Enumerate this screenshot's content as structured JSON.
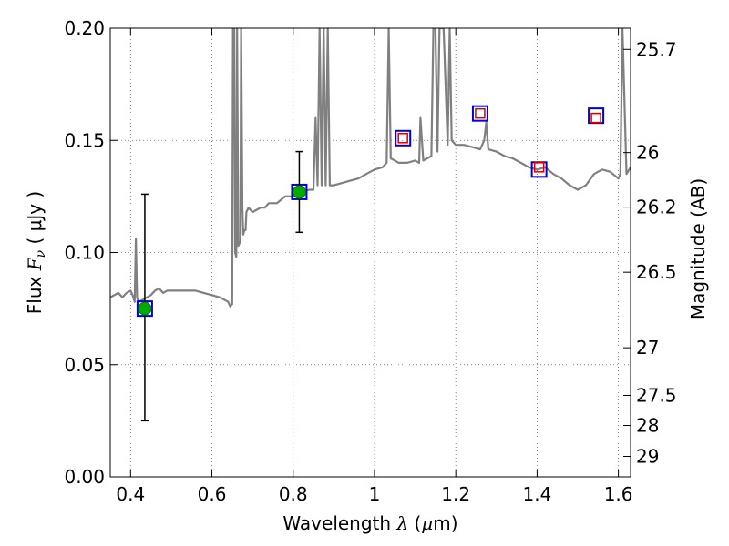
{
  "chart_data": {
    "type": "line",
    "xlabel": {
      "prefix": "Wavelength  ",
      "symbol": "λ",
      "unit_open": " (",
      "unit_mu": "μ",
      "unit_rest": "m)"
    },
    "ylabel_left": {
      "prefix": "Flux  ",
      "symbol": "F",
      "subscript": "ν",
      "unit": "  ( μJy )"
    },
    "ylabel_right": "Magnitude (AB)",
    "xlim": [
      0.35,
      1.63
    ],
    "ylim": [
      0.0,
      0.2
    ],
    "xticks": [
      0.4,
      0.6,
      0.8,
      1.0,
      1.2,
      1.4,
      1.6
    ],
    "xtick_labels": [
      "0.4",
      "0.6",
      "0.8",
      "1",
      "1.2",
      "1.4",
      "1.6"
    ],
    "yticks": [
      0.0,
      0.05,
      0.1,
      0.15,
      0.2
    ],
    "ytick_labels": [
      "0.00",
      "0.05",
      "0.10",
      "0.15",
      "0.20"
    ],
    "right_ticks": [
      {
        "label": "25.7",
        "mag": 25.7
      },
      {
        "label": "26",
        "mag": 26.0
      },
      {
        "label": "26.2",
        "mag": 26.2
      },
      {
        "label": "26.5",
        "mag": 26.5
      },
      {
        "label": "27",
        "mag": 27.0
      },
      {
        "label": "27.5",
        "mag": 27.5
      },
      {
        "label": "28",
        "mag": 28.0
      },
      {
        "label": "29",
        "mag": 29.0
      }
    ],
    "grid": true,
    "colors": {
      "spectrum": "#808080",
      "detection": "#00aa00",
      "model_box": "#0000dd",
      "upper_box": "#dd0000",
      "errorbar": "#000000"
    },
    "spectrum": {
      "name": "",
      "x": [
        0.35,
        0.36,
        0.37,
        0.38,
        0.39,
        0.4,
        0.405,
        0.41,
        0.413,
        0.416,
        0.42,
        0.43,
        0.44,
        0.45,
        0.46,
        0.47,
        0.48,
        0.49,
        0.5,
        0.52,
        0.54,
        0.56,
        0.58,
        0.6,
        0.62,
        0.64,
        0.645,
        0.65,
        0.652,
        0.655,
        0.657,
        0.66,
        0.662,
        0.665,
        0.67,
        0.672,
        0.675,
        0.677,
        0.68,
        0.683,
        0.685,
        0.69,
        0.7,
        0.72,
        0.73,
        0.74,
        0.76,
        0.78,
        0.8,
        0.82,
        0.84,
        0.85,
        0.855,
        0.86,
        0.865,
        0.87,
        0.875,
        0.88,
        0.885,
        0.89,
        0.9,
        0.92,
        0.94,
        0.96,
        0.98,
        1.0,
        1.02,
        1.03,
        1.035,
        1.04,
        1.05,
        1.06,
        1.08,
        1.1,
        1.11,
        1.113,
        1.12,
        1.14,
        1.145,
        1.15,
        1.155,
        1.16,
        1.17,
        1.18,
        1.185,
        1.19,
        1.2,
        1.22,
        1.24,
        1.26,
        1.27,
        1.275,
        1.28,
        1.3,
        1.32,
        1.34,
        1.36,
        1.38,
        1.4,
        1.42,
        1.44,
        1.46,
        1.48,
        1.5,
        1.52,
        1.54,
        1.56,
        1.58,
        1.6,
        1.605,
        1.61,
        1.62,
        1.63
      ],
      "y": [
        0.08,
        0.081,
        0.082,
        0.08,
        0.082,
        0.083,
        0.081,
        0.078,
        0.106,
        0.08,
        0.078,
        0.079,
        0.08,
        0.081,
        0.083,
        0.084,
        0.082,
        0.083,
        0.083,
        0.083,
        0.083,
        0.083,
        0.082,
        0.081,
        0.08,
        0.078,
        0.076,
        0.077,
        0.2,
        0.2,
        0.1,
        0.098,
        0.2,
        0.103,
        0.105,
        0.2,
        0.12,
        0.108,
        0.11,
        0.11,
        0.118,
        0.12,
        0.118,
        0.12,
        0.12,
        0.122,
        0.122,
        0.125,
        0.125,
        0.127,
        0.128,
        0.128,
        0.16,
        0.13,
        0.2,
        0.13,
        0.2,
        0.13,
        0.2,
        0.13,
        0.13,
        0.131,
        0.132,
        0.133,
        0.135,
        0.137,
        0.138,
        0.14,
        0.2,
        0.142,
        0.141,
        0.14,
        0.14,
        0.141,
        0.14,
        0.16,
        0.141,
        0.143,
        0.2,
        0.2,
        0.145,
        0.2,
        0.2,
        0.148,
        0.2,
        0.15,
        0.148,
        0.148,
        0.147,
        0.146,
        0.15,
        0.158,
        0.146,
        0.145,
        0.143,
        0.142,
        0.14,
        0.138,
        0.137,
        0.138,
        0.135,
        0.133,
        0.13,
        0.128,
        0.13,
        0.135,
        0.137,
        0.136,
        0.133,
        0.135,
        0.2,
        0.135,
        0.138
      ]
    },
    "detections": [
      {
        "x": 0.435,
        "y": 0.075,
        "yerr_low": 0.025,
        "yerr_high": 0.126
      },
      {
        "x": 0.815,
        "y": 0.127,
        "yerr_low": 0.109,
        "yerr_high": 0.145
      }
    ],
    "model_points": [
      {
        "x": 0.435,
        "y": 0.075
      },
      {
        "x": 0.815,
        "y": 0.127
      },
      {
        "x": 1.07,
        "y": 0.151
      },
      {
        "x": 1.26,
        "y": 0.162
      },
      {
        "x": 1.405,
        "y": 0.137
      },
      {
        "x": 1.545,
        "y": 0.161
      }
    ],
    "upper_points": [
      {
        "x": 1.07,
        "y": 0.151
      },
      {
        "x": 1.26,
        "y": 0.162
      },
      {
        "x": 1.405,
        "y": 0.138
      },
      {
        "x": 1.545,
        "y": 0.16
      }
    ]
  }
}
